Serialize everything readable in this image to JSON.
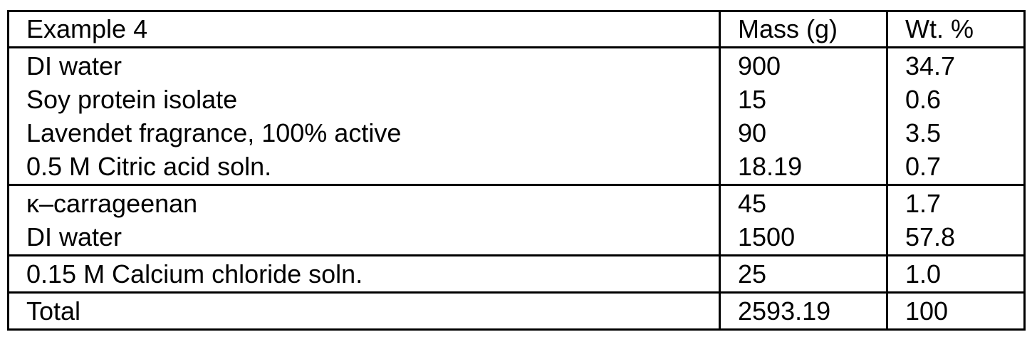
{
  "colors": {
    "border": "#000000",
    "background": "#ffffff",
    "text": "#000000"
  },
  "table": {
    "header": {
      "title": "Example 4",
      "col_mass": "Mass (g)",
      "col_wt": "Wt. %"
    },
    "groups": [
      {
        "rows": [
          {
            "name": "DI water",
            "mass": "900",
            "wt": "34.7"
          },
          {
            "name": "Soy protein isolate",
            "mass": "15",
            "wt": "0.6"
          },
          {
            "name": "Lavendet fragrance, 100% active",
            "mass": "90",
            "wt": "3.5"
          },
          {
            "name": "0.5 M Citric acid soln.",
            "mass": "18.19",
            "wt": "0.7"
          }
        ]
      },
      {
        "rows": [
          {
            "name": "κ–carrageenan",
            "mass": "45",
            "wt": "1.7"
          },
          {
            "name": "DI water",
            "mass": "1500",
            "wt": "57.8"
          }
        ]
      },
      {
        "rows": [
          {
            "name": "0.15 M Calcium chloride soln.",
            "mass": "25",
            "wt": "1.0"
          }
        ]
      }
    ],
    "total": {
      "name": "Total",
      "mass": "2593.19",
      "wt": "100"
    }
  }
}
